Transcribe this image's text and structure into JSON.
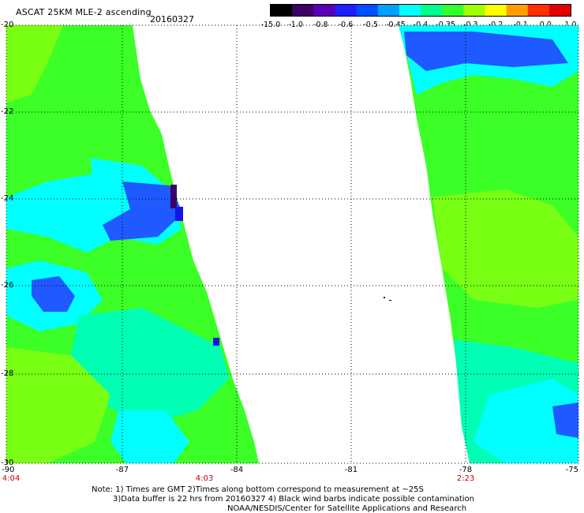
{
  "header": {
    "title": "ASCAT 25KM MLE-2 ascending",
    "date": "20160327"
  },
  "colorbar": {
    "labels": [
      "-15.0",
      "-1.0",
      "-0.8",
      "-0.6",
      "-0.5",
      "-0.45",
      "-0.4",
      "-0.35",
      "-0.3",
      "-0.2",
      "-0.1",
      "0.0",
      "1.0"
    ],
    "colors": [
      "#000000",
      "#3a0064",
      "#5a00b4",
      "#2020ff",
      "#0050ff",
      "#00a0ff",
      "#00ffff",
      "#00ff90",
      "#30ff30",
      "#a0ff00",
      "#ffff00",
      "#ffa000",
      "#ff3000",
      "#e00000"
    ]
  },
  "axes": {
    "lon_labels": [
      "-90",
      "-87",
      "-84",
      "-81",
      "-78",
      "-75"
    ],
    "lat_labels": [
      "-20",
      "-22",
      "-24",
      "-26",
      "-28",
      "-30"
    ]
  },
  "times": {
    "t1": "4:04",
    "t2": "4:03",
    "t3": "2:23"
  },
  "notes": {
    "line1": "Note: 1) Times are GMT 2)Times along bottom correspond to measurement at ~25S",
    "line2": "3)Data buffer is 22 hrs from 20160327 4) Black wind barbs indicate possible contamination",
    "line3": "NOAA/NESDIS/Center for Satellite Applications and Research"
  },
  "map_colors": {
    "green": "#3cff28",
    "light_green": "#78ff14",
    "cyan": "#00ffff",
    "aqua": "#00ffb4",
    "blue": "#1e5aff",
    "dark_blue": "#1414e6",
    "purple": "#3c0064",
    "gridline": "#000000"
  }
}
